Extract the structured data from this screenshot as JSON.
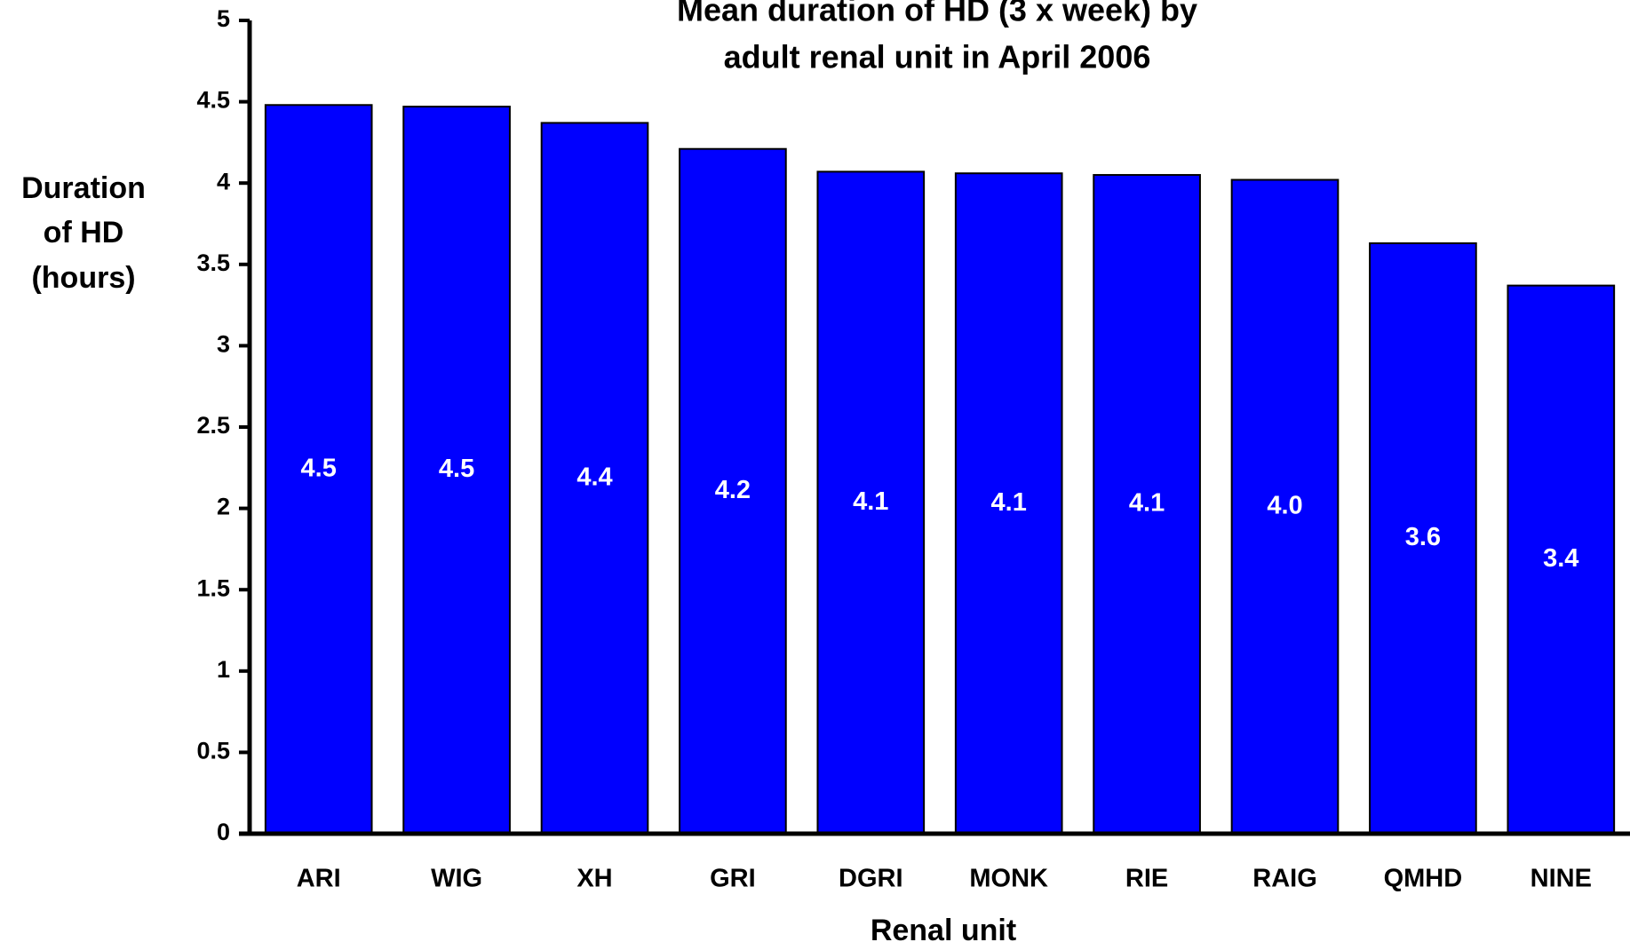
{
  "chart_data": {
    "type": "bar",
    "title": [
      "Mean duration of HD (3 x week) by",
      "adult renal unit in April 2006"
    ],
    "y_label": [
      "Duration",
      "of HD",
      "(hours)"
    ],
    "x_label": "Renal unit",
    "categories": [
      "ARI",
      "WIG",
      "XH",
      "GRI",
      "DGRI",
      "MONK",
      "RIE",
      "RAIG",
      "QMHD",
      "NINE"
    ],
    "values": [
      4.48,
      4.47,
      4.37,
      4.21,
      4.07,
      4.06,
      4.05,
      4.02,
      3.63,
      3.37
    ],
    "value_labels": [
      "4.5",
      "4.5",
      "4.4",
      "4.2",
      "4.1",
      "4.1",
      "4.1",
      "4.0",
      "3.6",
      "3.4"
    ],
    "color": "#0000ff",
    "ylim": [
      0,
      5
    ],
    "yticks": [
      0,
      0.5,
      1,
      1.5,
      2,
      2.5,
      3,
      3.5,
      4,
      4.5,
      5
    ],
    "grid": false
  }
}
